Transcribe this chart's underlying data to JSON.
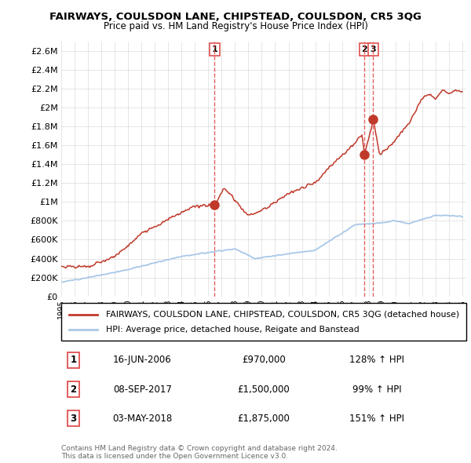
{
  "title": "FAIRWAYS, COULSDON LANE, CHIPSTEAD, COULSDON, CR5 3QG",
  "subtitle": "Price paid vs. HM Land Registry's House Price Index (HPI)",
  "ylim": [
    0,
    2700000
  ],
  "yticks": [
    0,
    200000,
    400000,
    600000,
    800000,
    1000000,
    1200000,
    1400000,
    1600000,
    1800000,
    2000000,
    2200000,
    2400000,
    2600000
  ],
  "ytick_labels": [
    "£0",
    "£200K",
    "£400K",
    "£600K",
    "£800K",
    "£1M",
    "£1.2M",
    "£1.4M",
    "£1.6M",
    "£1.8M",
    "£2M",
    "£2.2M",
    "£2.4M",
    "£2.6M"
  ],
  "hpi_color": "#a8c8e8",
  "price_color": "#c0392b",
  "vline_color": "#e05050",
  "marker_color": "#c0392b",
  "sale_dates": [
    2006.46,
    2017.69,
    2018.34
  ],
  "sale_prices": [
    970000,
    1500000,
    1875000
  ],
  "sale_labels": [
    "1",
    "2",
    "3"
  ],
  "legend_label_price": "FAIRWAYS, COULSDON LANE, CHIPSTEAD, COULSDON, CR5 3QG (detached house)",
  "legend_label_hpi": "HPI: Average price, detached house, Reigate and Banstead",
  "table_rows": [
    [
      "1",
      "16-JUN-2006",
      "£970,000",
      "128% ↑ HPI"
    ],
    [
      "2",
      "08-SEP-2017",
      "£1,500,000",
      "99% ↑ HPI"
    ],
    [
      "3",
      "03-MAY-2018",
      "£1,875,000",
      "151% ↑ HPI"
    ]
  ],
  "footnote": "Contains HM Land Registry data © Crown copyright and database right 2024.\nThis data is licensed under the Open Government Licence v3.0.",
  "background_color": "#ffffff",
  "grid_color": "#cccccc"
}
